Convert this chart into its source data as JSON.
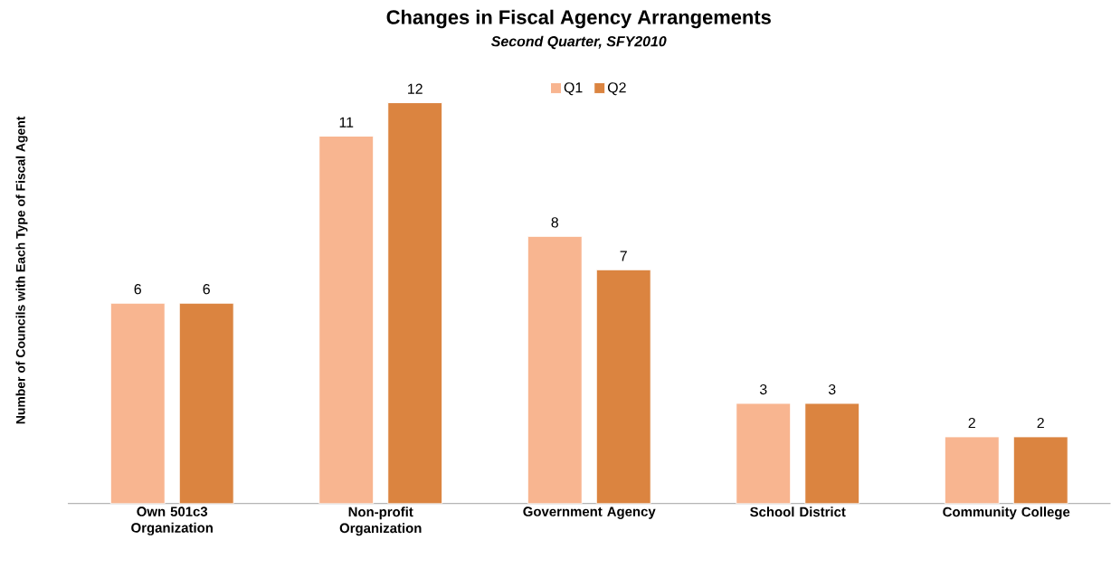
{
  "chart_data": {
    "type": "bar",
    "title": "Changes in Fiscal Agency Arrangements",
    "subtitle": "Second Quarter, SFY2010",
    "ylabel": "Number of Councils with Each Type of Fiscal Agent",
    "categories": [
      "Own 501c3 Organization",
      "Non-profit Organization",
      "Government Agency",
      "School District",
      "Community College"
    ],
    "series": [
      {
        "name": "Q1",
        "color": "#f8b590",
        "values": [
          6,
          11,
          8,
          3,
          2
        ]
      },
      {
        "name": "Q2",
        "color": "#db8440",
        "values": [
          6,
          12,
          7,
          3,
          2
        ]
      }
    ],
    "data_labels": true,
    "legend": "top"
  }
}
